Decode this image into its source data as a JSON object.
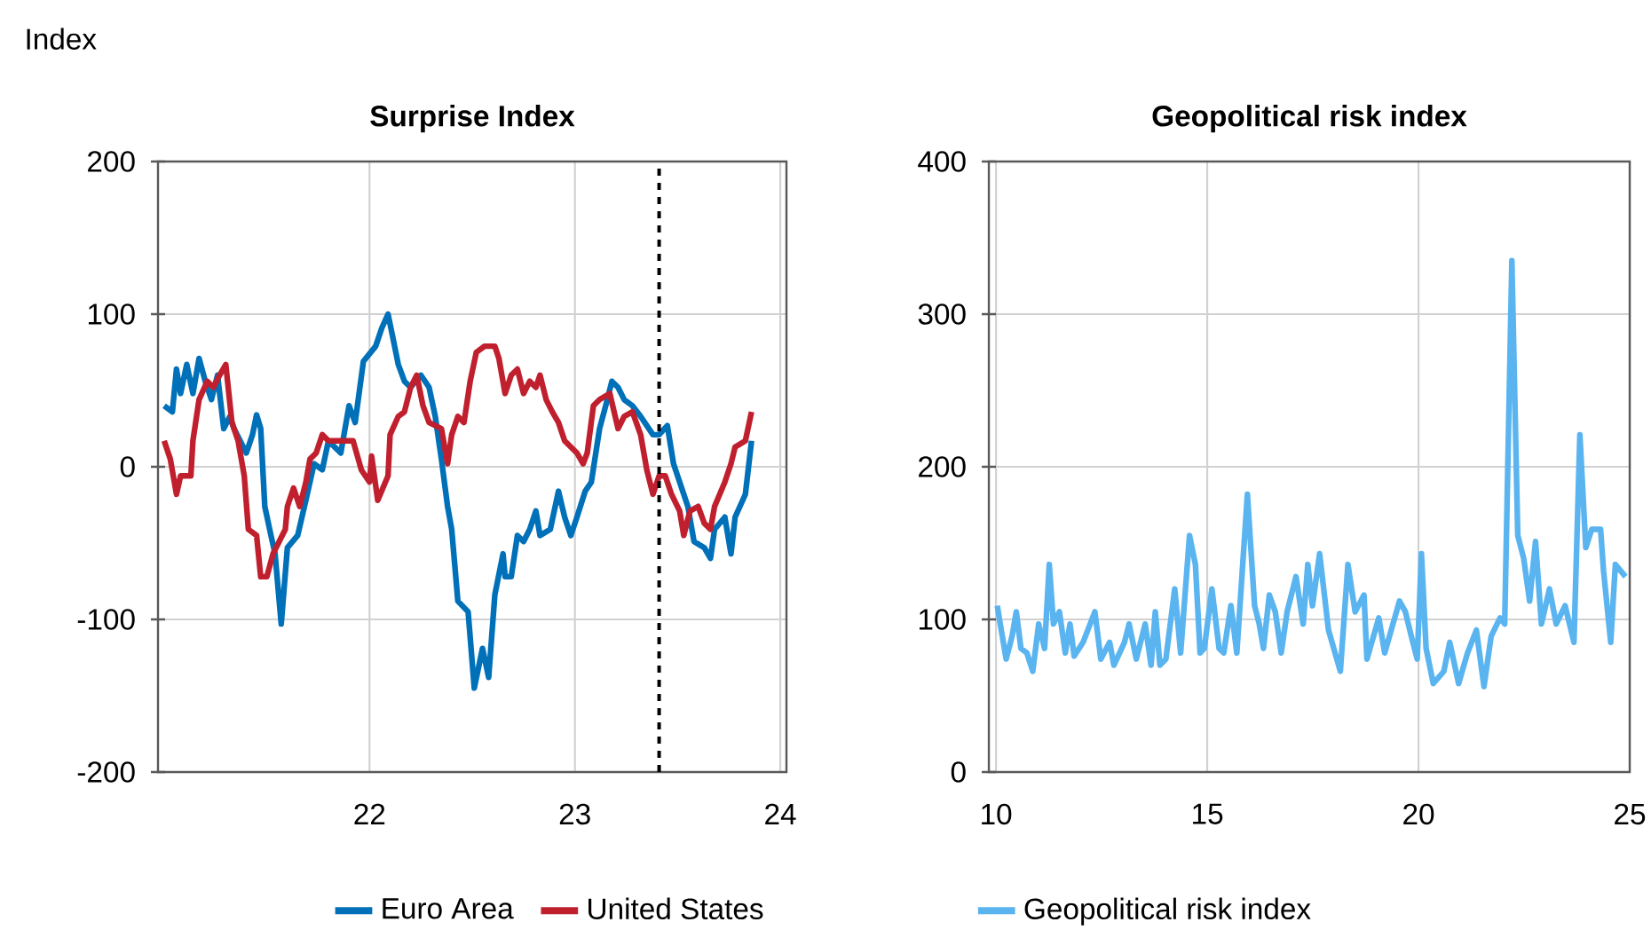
{
  "chart_data": [
    {
      "type": "line",
      "title": "Surprise Index",
      "ylabel": "Index",
      "xlim": [
        20.97,
        24.03
      ],
      "xticks": [
        22,
        23,
        24
      ],
      "ylim": [
        -200,
        200
      ],
      "yticks": [
        -200,
        -100,
        0,
        100,
        200
      ],
      "grid": true,
      "legend": "bottom",
      "ref_lines": [
        {
          "axis": "x",
          "value": 23.41,
          "color": "#000000",
          "line_style": "dashed"
        }
      ],
      "series": [
        {
          "name": "Euro Area",
          "color": "#0070b8",
          "x": [
            21.0,
            21.04,
            21.06,
            21.08,
            21.11,
            21.14,
            21.17,
            21.2,
            21.23,
            21.26,
            21.29,
            21.32,
            21.34,
            21.4,
            21.43,
            21.45,
            21.47,
            21.49,
            21.52,
            21.54,
            21.57,
            21.6,
            21.65,
            21.69,
            21.73,
            21.77,
            21.8,
            21.86,
            21.9,
            21.93,
            21.97,
            22.03,
            22.06,
            22.09,
            22.11,
            22.14,
            22.17,
            22.2,
            22.25,
            22.29,
            22.32,
            22.35,
            22.38,
            22.4,
            22.43,
            22.48,
            22.51,
            22.55,
            22.58,
            22.61,
            22.65,
            22.66,
            22.69,
            22.72,
            22.75,
            22.78,
            22.81,
            22.83,
            22.88,
            22.92,
            22.95,
            22.98,
            23.01,
            23.05,
            23.08,
            23.12,
            23.15,
            23.18,
            23.21,
            23.24,
            23.28,
            23.32,
            23.38,
            23.41,
            23.45,
            23.48,
            23.51,
            23.55,
            23.58,
            23.63,
            23.66,
            23.68,
            23.73,
            23.76,
            23.78,
            23.83,
            23.86
          ],
          "values": [
            40,
            36,
            64,
            48,
            67,
            48,
            71,
            56,
            44,
            60,
            25,
            33,
            25,
            9,
            21,
            34,
            25,
            -26,
            -45,
            -57,
            -103,
            -53,
            -45,
            -22,
            2,
            -2,
            17,
            9,
            40,
            29,
            69,
            79,
            91,
            100,
            87,
            67,
            56,
            52,
            60,
            52,
            33,
            5,
            -26,
            -41,
            -88,
            -95,
            -145,
            -119,
            -138,
            -84,
            -57,
            -72,
            -72,
            -45,
            -49,
            -41,
            -29,
            -45,
            -41,
            -16,
            -33,
            -45,
            -33,
            -16,
            -10,
            25,
            40,
            56,
            52,
            44,
            40,
            33,
            21,
            21,
            27,
            2,
            -10,
            -26,
            -49,
            -53,
            -60,
            -41,
            -33,
            -57,
            -33,
            -18,
            17
          ]
        },
        {
          "name": "United States",
          "color": "#c0202e",
          "x": [
            21.0,
            21.03,
            21.06,
            21.08,
            21.13,
            21.14,
            21.17,
            21.21,
            21.24,
            21.27,
            21.3,
            21.33,
            21.36,
            21.39,
            21.41,
            21.45,
            21.47,
            21.5,
            21.53,
            21.56,
            21.59,
            21.6,
            21.63,
            21.66,
            21.69,
            21.71,
            21.74,
            21.77,
            21.8,
            21.86,
            21.92,
            21.96,
            22.0,
            22.01,
            22.04,
            22.09,
            22.1,
            22.14,
            22.17,
            22.2,
            22.23,
            22.26,
            22.29,
            22.35,
            22.38,
            22.4,
            22.43,
            22.46,
            22.49,
            22.52,
            22.56,
            22.61,
            22.63,
            22.66,
            22.69,
            22.72,
            22.75,
            22.78,
            22.81,
            22.83,
            22.86,
            22.89,
            22.92,
            22.95,
            23.01,
            23.04,
            23.06,
            23.09,
            23.12,
            23.17,
            23.21,
            23.24,
            23.28,
            23.32,
            23.35,
            23.38,
            23.41,
            23.44,
            23.47,
            23.51,
            23.53,
            23.56,
            23.6,
            23.63,
            23.66,
            23.68,
            23.73,
            23.76,
            23.78,
            23.83,
            23.86
          ],
          "values": [
            17,
            5,
            -18,
            -6,
            -6,
            17,
            44,
            56,
            52,
            60,
            67,
            29,
            17,
            -6,
            -41,
            -45,
            -72,
            -72,
            -57,
            -49,
            -41,
            -26,
            -14,
            -26,
            -10,
            5,
            9,
            21,
            17,
            17,
            17,
            -2,
            -10,
            7,
            -22,
            -6,
            21,
            33,
            36,
            52,
            60,
            40,
            29,
            25,
            2,
            21,
            33,
            29,
            56,
            75,
            79,
            79,
            71,
            48,
            60,
            64,
            48,
            56,
            52,
            60,
            44,
            36,
            29,
            17,
            9,
            2,
            9,
            40,
            44,
            48,
            25,
            33,
            36,
            21,
            -2,
            -18,
            -6,
            -6,
            -18,
            -29,
            -45,
            -29,
            -26,
            -37,
            -41,
            -26,
            -10,
            2,
            13,
            17,
            36
          ]
        }
      ]
    },
    {
      "type": "line",
      "title": "Geopolitical risk index",
      "xlim": [
        9.83,
        25
      ],
      "xticks": [
        10,
        15,
        20,
        25
      ],
      "ylim": [
        0,
        400
      ],
      "yticks": [
        0,
        100,
        200,
        300,
        400
      ],
      "grid": true,
      "legend": "bottom",
      "series": [
        {
          "name": "Geopolitical risk index",
          "color": "#5ab4f0",
          "x": [
            10.03,
            10.1,
            10.24,
            10.38,
            10.48,
            10.59,
            10.73,
            10.87,
            11.01,
            11.15,
            11.26,
            11.36,
            11.5,
            11.64,
            11.75,
            11.85,
            12.06,
            12.34,
            12.48,
            12.69,
            12.79,
            13.04,
            13.15,
            13.32,
            13.53,
            13.67,
            13.77,
            13.88,
            14.02,
            14.23,
            14.37,
            14.58,
            14.72,
            14.83,
            14.93,
            15.11,
            15.28,
            15.39,
            15.56,
            15.7,
            15.95,
            16.12,
            16.23,
            16.33,
            16.47,
            16.61,
            16.75,
            16.89,
            17.1,
            17.27,
            17.38,
            17.49,
            17.66,
            17.87,
            18.15,
            18.33,
            18.5,
            18.71,
            18.78,
            19.06,
            19.2,
            19.55,
            19.69,
            19.83,
            19.97,
            20.07,
            20.18,
            20.35,
            20.6,
            20.74,
            20.95,
            21.16,
            21.37,
            21.55,
            21.72,
            21.93,
            22.04,
            22.21,
            22.35,
            22.49,
            22.63,
            22.77,
            22.91,
            23.1,
            23.26,
            23.47,
            23.68,
            23.82,
            23.96,
            24.1,
            24.31,
            24.38,
            24.55,
            24.66,
            24.9
          ],
          "values": [
            109,
            97,
            74,
            89,
            105,
            81,
            78,
            66,
            97,
            81,
            136,
            97,
            105,
            78,
            97,
            76,
            85,
            105,
            74,
            85,
            70,
            85,
            97,
            74,
            97,
            70,
            105,
            70,
            74,
            120,
            78,
            155,
            136,
            78,
            81,
            120,
            81,
            78,
            109,
            78,
            182,
            109,
            97,
            81,
            116,
            105,
            78,
            105,
            128,
            97,
            136,
            109,
            143,
            93,
            66,
            136,
            105,
            116,
            74,
            101,
            78,
            112,
            105,
            89,
            74,
            143,
            81,
            58,
            66,
            85,
            58,
            78,
            93,
            56,
            89,
            101,
            97,
            335,
            155,
            140,
            112,
            151,
            97,
            120,
            97,
            109,
            85,
            221,
            147,
            159,
            159,
            132,
            85,
            136,
            128
          ]
        }
      ]
    }
  ]
}
